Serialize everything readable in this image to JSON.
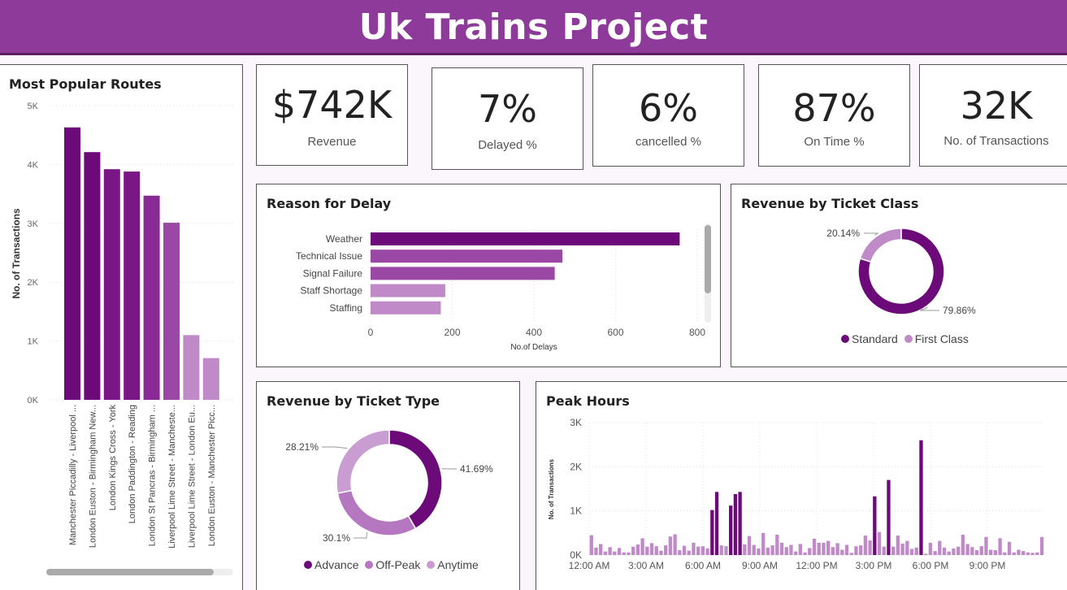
{
  "app": {
    "title": "Uk Trains Project"
  },
  "kpis": [
    {
      "value": "$742K",
      "label": "Revenue"
    },
    {
      "value": "7%",
      "label": "Delayed %"
    },
    {
      "value": "6%",
      "label": "cancelled %"
    },
    {
      "value": "87%",
      "label": "On Time %"
    },
    {
      "value": "32K",
      "label": "No. of Transactions"
    }
  ],
  "colors": {
    "header": "#8e3a9a",
    "dark_purple": "#6b0a78",
    "mid_purple": "#9b47a6",
    "light_purple": "#c08ac9"
  },
  "chart_data": [
    {
      "type": "bar",
      "title": "Most Popular Routes",
      "ylabel": "No. of Transactions",
      "xlabel": "",
      "categories": [
        "Manchester Piccadilly - Liverpool ...",
        "London Euston - Birmingham New...",
        "London Kings Cross - York",
        "London Paddington - Reading",
        "London St Pancras - Birmingham ...",
        "Liverpool Lime Street - Mancheste...",
        "Liverpool Lime Street - London Eu...",
        "London Euston - Manchester Picc..."
      ],
      "values": [
        4630,
        4210,
        3920,
        3880,
        3470,
        3010,
        1100,
        710
      ],
      "ylim": [
        0,
        5000
      ],
      "yticks": [
        "0K",
        "1K",
        "2K",
        "3K",
        "4K",
        "5K"
      ],
      "grid": true
    },
    {
      "type": "bar",
      "orientation": "horizontal",
      "title": "Reason for Delay",
      "xlabel": "No.of Delays",
      "categories": [
        "Weather",
        "Technical Issue",
        "Signal Failure",
        "Staff Shortage",
        "Staffing"
      ],
      "values": [
        757,
        470,
        451,
        183,
        172
      ],
      "xlim": [
        0,
        800
      ],
      "xticks": [
        "0",
        "200",
        "400",
        "600",
        "800"
      ],
      "grid": true
    },
    {
      "type": "pie",
      "donut": true,
      "title": "Revenue by Ticket Class",
      "series": [
        {
          "name": "Standard",
          "value": 79.86,
          "label": "79.86%",
          "color": "#6b0a78"
        },
        {
          "name": "First Class",
          "value": 20.14,
          "label": "20.14%",
          "color": "#c08ac9"
        }
      ],
      "legend": "bottom"
    },
    {
      "type": "pie",
      "donut": true,
      "title": "Revenue by Ticket Type",
      "series": [
        {
          "name": "Advance",
          "value": 41.69,
          "label": "41.69%",
          "color": "#6b0a78"
        },
        {
          "name": "Off-Peak",
          "value": 30.1,
          "label": "30.1%",
          "color": "#b677c1"
        },
        {
          "name": "Anytime",
          "value": 28.21,
          "label": "28.21%",
          "color": "#c99dd1"
        }
      ],
      "legend": "bottom"
    },
    {
      "type": "bar",
      "title": "Peak Hours",
      "ylabel": "No. of Transactions",
      "xticks": [
        "12:00 AM",
        "3:00 AM",
        "6:00 AM",
        "9:00 AM",
        "12:00 PM",
        "3:00 PM",
        "6:00 PM",
        "9:00 PM"
      ],
      "yticks": [
        "0K",
        "1K",
        "2K",
        "3K"
      ],
      "ylim": [
        0,
        3000
      ],
      "grid": true,
      "values": [
        450,
        170,
        250,
        80,
        180,
        80,
        160,
        60,
        60,
        190,
        240,
        380,
        190,
        270,
        200,
        100,
        220,
        420,
        470,
        110,
        210,
        100,
        280,
        190,
        200,
        150,
        1020,
        1430,
        220,
        200,
        1120,
        1380,
        1430,
        240,
        430,
        230,
        150,
        500,
        170,
        220,
        460,
        280,
        180,
        230,
        80,
        250,
        60,
        160,
        370,
        280,
        280,
        320,
        180,
        270,
        120,
        230,
        50,
        200,
        220,
        440,
        330,
        1330,
        520,
        190,
        1700,
        190,
        440,
        260,
        320,
        140,
        170,
        2600,
        30,
        280,
        90,
        320,
        170,
        80,
        150,
        190,
        460,
        250,
        180,
        110,
        200,
        410,
        120,
        110,
        380,
        60,
        300,
        60,
        120,
        90,
        60,
        50,
        60,
        410
      ]
    }
  ]
}
